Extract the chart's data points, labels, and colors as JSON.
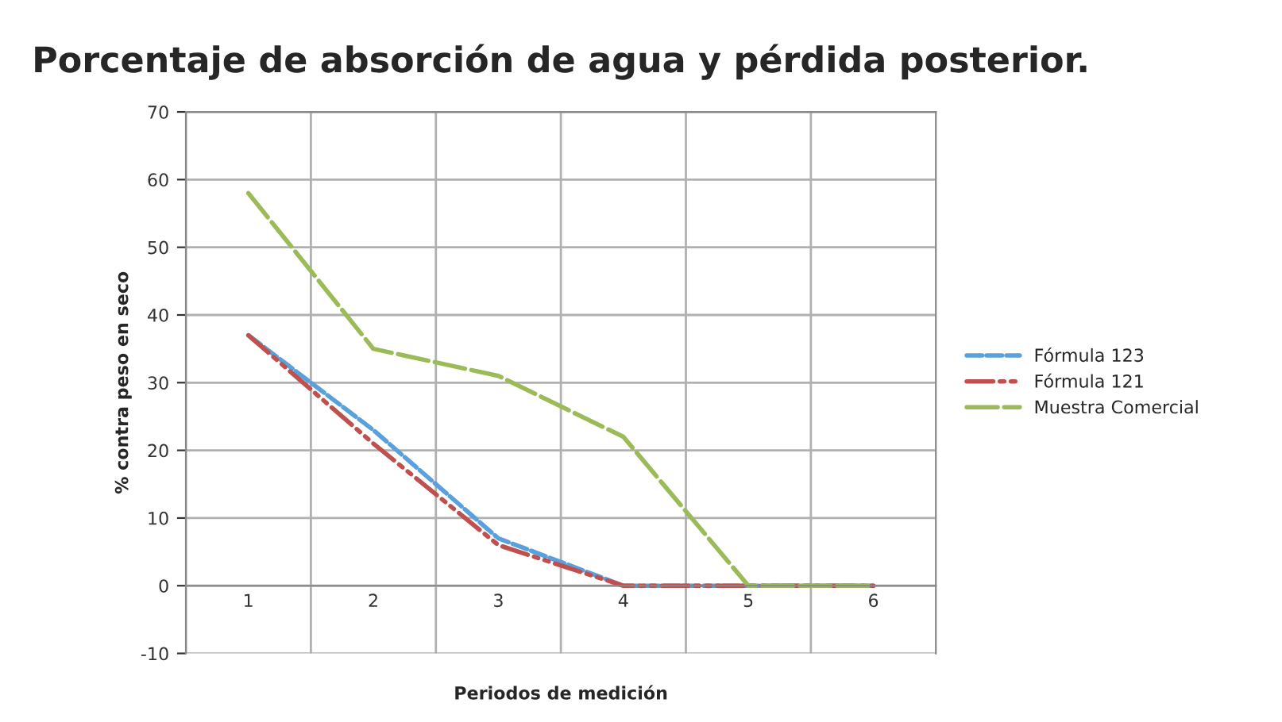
{
  "chart_data": {
    "type": "line",
    "title": "Porcentaje de absorción de agua y pérdida posterior.",
    "xlabel": "Periodos de medición",
    "ylabel": "% contra peso en seco",
    "categories": [
      "1",
      "2",
      "3",
      "4",
      "5",
      "6"
    ],
    "series": [
      {
        "name": "Fórmula 123",
        "color": "#5aa0dc",
        "line_style": "dashed",
        "values": [
          37,
          23,
          7,
          0,
          0,
          0
        ]
      },
      {
        "name": "Fórmula 121",
        "color": "#c0504d",
        "line_style": "dashdot",
        "values": [
          37,
          21,
          6,
          0,
          0,
          0
        ]
      },
      {
        "name": "Muestra Comercial",
        "color": "#9bbb59",
        "line_style": "longdash",
        "values": [
          58,
          35,
          31,
          22,
          0,
          0
        ]
      }
    ],
    "ylim": [
      -10,
      70
    ],
    "yticks": [
      -10,
      0,
      10,
      20,
      30,
      40,
      50,
      60,
      70
    ],
    "grid": true,
    "legend": "right",
    "marker": "none"
  }
}
